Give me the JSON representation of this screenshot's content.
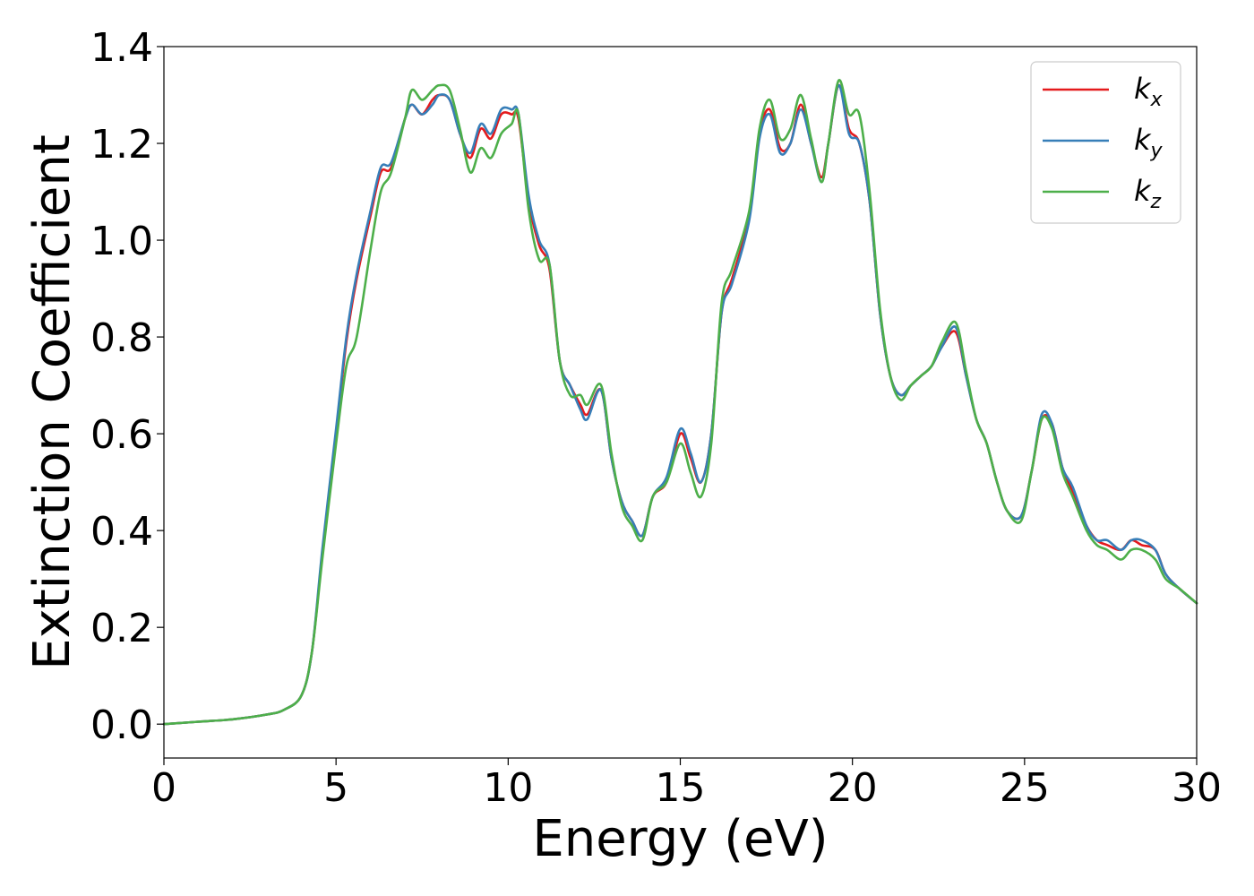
{
  "chart_data": {
    "type": "line",
    "title": "",
    "xlabel": "Energy (eV)",
    "ylabel": "Extinction Coefficient",
    "xlim": [
      0,
      30
    ],
    "ylim": [
      -0.07,
      1.4
    ],
    "xticks": [
      0,
      5,
      10,
      15,
      20,
      25,
      30
    ],
    "xtick_labels": [
      "0",
      "5",
      "10",
      "15",
      "20",
      "25",
      "30"
    ],
    "yticks": [
      0.0,
      0.2,
      0.4,
      0.6,
      0.8,
      1.0,
      1.2,
      1.4
    ],
    "ytick_labels": [
      "0.0",
      "0.2",
      "0.4",
      "0.6",
      "0.8",
      "1.0",
      "1.2",
      "1.4"
    ],
    "grid": false,
    "legend_position": "top-right",
    "series": [
      {
        "name": "kx",
        "legend_base": "k",
        "legend_sub": "x",
        "color": "#e41a1c",
        "x": [
          0,
          1,
          2,
          3,
          3.5,
          4,
          4.3,
          4.6,
          5,
          5.3,
          5.6,
          6,
          6.3,
          6.6,
          7,
          7.2,
          7.5,
          7.8,
          8,
          8.3,
          8.6,
          8.9,
          9.2,
          9.5,
          9.8,
          10.1,
          10.3,
          10.6,
          10.9,
          11.2,
          11.5,
          11.8,
          12.1,
          12.3,
          12.7,
          13,
          13.3,
          13.6,
          13.9,
          14.2,
          14.6,
          15,
          15.3,
          15.6,
          15.9,
          16.2,
          16.5,
          17,
          17.3,
          17.6,
          17.9,
          18.2,
          18.5,
          18.8,
          19.1,
          19.3,
          19.6,
          19.9,
          20.2,
          20.5,
          20.8,
          21.1,
          21.4,
          21.7,
          22,
          22.3,
          22.6,
          23,
          23.3,
          23.6,
          23.9,
          24.2,
          24.5,
          24.9,
          25.2,
          25.5,
          25.8,
          26.1,
          26.4,
          26.8,
          27.1,
          27.4,
          27.8,
          28.1,
          28.4,
          28.8,
          29.1,
          29.5,
          30
        ],
        "y": [
          0.0,
          0.005,
          0.01,
          0.02,
          0.03,
          0.06,
          0.15,
          0.35,
          0.6,
          0.79,
          0.92,
          1.05,
          1.14,
          1.15,
          1.25,
          1.28,
          1.26,
          1.29,
          1.3,
          1.29,
          1.22,
          1.17,
          1.23,
          1.21,
          1.26,
          1.26,
          1.25,
          1.08,
          0.99,
          0.94,
          0.75,
          0.7,
          0.66,
          0.64,
          0.69,
          0.55,
          0.46,
          0.42,
          0.39,
          0.47,
          0.5,
          0.6,
          0.55,
          0.5,
          0.6,
          0.85,
          0.92,
          1.05,
          1.22,
          1.27,
          1.19,
          1.2,
          1.28,
          1.2,
          1.13,
          1.2,
          1.32,
          1.23,
          1.2,
          1.08,
          0.85,
          0.72,
          0.68,
          0.7,
          0.72,
          0.74,
          0.78,
          0.81,
          0.72,
          0.63,
          0.58,
          0.5,
          0.44,
          0.43,
          0.52,
          0.63,
          0.62,
          0.53,
          0.48,
          0.41,
          0.38,
          0.37,
          0.36,
          0.38,
          0.37,
          0.36,
          0.31,
          0.28,
          0.25
        ]
      },
      {
        "name": "ky",
        "legend_base": "k",
        "legend_sub": "y",
        "color": "#377eb8",
        "x": [
          0,
          1,
          2,
          3,
          3.5,
          4,
          4.3,
          4.6,
          5,
          5.3,
          5.6,
          6,
          6.3,
          6.6,
          7,
          7.2,
          7.5,
          7.8,
          8,
          8.3,
          8.6,
          8.9,
          9.2,
          9.5,
          9.8,
          10.1,
          10.3,
          10.6,
          10.9,
          11.2,
          11.5,
          11.8,
          12.1,
          12.3,
          12.7,
          13,
          13.3,
          13.6,
          13.9,
          14.2,
          14.6,
          15,
          15.3,
          15.6,
          15.9,
          16.2,
          16.5,
          17,
          17.3,
          17.6,
          17.9,
          18.2,
          18.5,
          18.8,
          19.1,
          19.3,
          19.6,
          19.9,
          20.2,
          20.5,
          20.8,
          21.1,
          21.4,
          21.7,
          22,
          22.3,
          22.6,
          23,
          23.3,
          23.6,
          23.9,
          24.2,
          24.5,
          24.9,
          25.2,
          25.5,
          25.8,
          26.1,
          26.4,
          26.8,
          27.1,
          27.4,
          27.8,
          28.1,
          28.4,
          28.8,
          29.1,
          29.5,
          30
        ],
        "y": [
          0.0,
          0.005,
          0.01,
          0.02,
          0.03,
          0.06,
          0.15,
          0.36,
          0.61,
          0.8,
          0.93,
          1.06,
          1.15,
          1.16,
          1.25,
          1.28,
          1.26,
          1.28,
          1.3,
          1.29,
          1.22,
          1.18,
          1.24,
          1.22,
          1.27,
          1.27,
          1.26,
          1.09,
          1.0,
          0.95,
          0.75,
          0.7,
          0.65,
          0.63,
          0.69,
          0.55,
          0.46,
          0.42,
          0.39,
          0.47,
          0.51,
          0.61,
          0.56,
          0.5,
          0.6,
          0.85,
          0.91,
          1.04,
          1.21,
          1.26,
          1.18,
          1.2,
          1.27,
          1.2,
          1.12,
          1.2,
          1.32,
          1.22,
          1.2,
          1.08,
          0.85,
          0.72,
          0.68,
          0.7,
          0.72,
          0.74,
          0.78,
          0.82,
          0.72,
          0.63,
          0.58,
          0.5,
          0.44,
          0.43,
          0.52,
          0.64,
          0.62,
          0.53,
          0.49,
          0.41,
          0.38,
          0.38,
          0.36,
          0.38,
          0.38,
          0.36,
          0.31,
          0.28,
          0.25
        ]
      },
      {
        "name": "kz",
        "legend_base": "k",
        "legend_sub": "z",
        "color": "#4daf4a",
        "x": [
          0,
          1,
          2,
          3,
          3.5,
          4,
          4.3,
          4.6,
          5,
          5.3,
          5.6,
          6,
          6.3,
          6.6,
          7,
          7.2,
          7.5,
          7.8,
          8,
          8.3,
          8.6,
          8.9,
          9.2,
          9.5,
          9.8,
          10.1,
          10.3,
          10.6,
          10.9,
          11.2,
          11.5,
          11.8,
          12.1,
          12.3,
          12.7,
          13,
          13.3,
          13.6,
          13.9,
          14.2,
          14.6,
          15,
          15.3,
          15.6,
          15.9,
          16.2,
          16.5,
          17,
          17.3,
          17.6,
          17.9,
          18.2,
          18.5,
          18.8,
          19.1,
          19.3,
          19.6,
          19.9,
          20.2,
          20.5,
          20.8,
          21.1,
          21.4,
          21.7,
          22,
          22.3,
          22.6,
          23,
          23.3,
          23.6,
          23.9,
          24.2,
          24.5,
          24.9,
          25.2,
          25.5,
          25.8,
          26.1,
          26.4,
          26.8,
          27.1,
          27.4,
          27.8,
          28.1,
          28.4,
          28.8,
          29.1,
          29.5,
          30
        ],
        "y": [
          0.0,
          0.005,
          0.01,
          0.02,
          0.03,
          0.06,
          0.15,
          0.34,
          0.58,
          0.74,
          0.8,
          0.98,
          1.1,
          1.14,
          1.25,
          1.31,
          1.29,
          1.31,
          1.32,
          1.31,
          1.23,
          1.14,
          1.19,
          1.17,
          1.22,
          1.24,
          1.26,
          1.06,
          0.96,
          0.95,
          0.75,
          0.68,
          0.68,
          0.66,
          0.7,
          0.56,
          0.45,
          0.41,
          0.38,
          0.47,
          0.5,
          0.58,
          0.52,
          0.47,
          0.58,
          0.87,
          0.94,
          1.06,
          1.23,
          1.29,
          1.21,
          1.23,
          1.3,
          1.21,
          1.12,
          1.2,
          1.33,
          1.26,
          1.26,
          1.1,
          0.86,
          0.72,
          0.67,
          0.7,
          0.72,
          0.74,
          0.79,
          0.83,
          0.73,
          0.63,
          0.58,
          0.5,
          0.44,
          0.42,
          0.52,
          0.63,
          0.61,
          0.52,
          0.47,
          0.4,
          0.37,
          0.36,
          0.34,
          0.36,
          0.36,
          0.34,
          0.3,
          0.28,
          0.25
        ]
      }
    ]
  }
}
